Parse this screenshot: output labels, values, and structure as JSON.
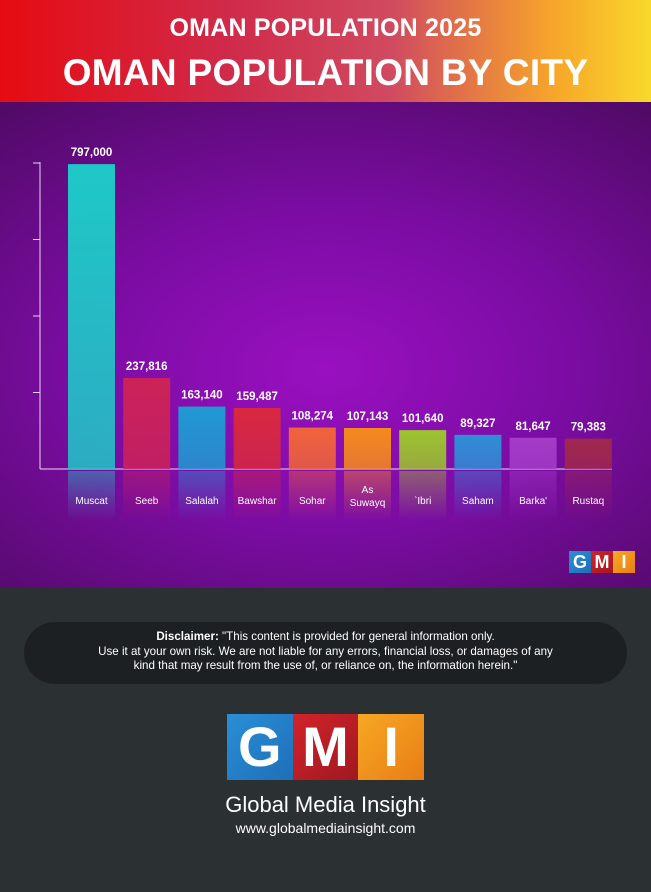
{
  "header": {
    "subtitle": "OMAN POPULATION 2025",
    "title": "OMAN POPULATION BY CITY"
  },
  "chart_data": {
    "type": "bar",
    "title": "OMAN POPULATION BY CITY",
    "categories": [
      "Muscat",
      "Seeb",
      "Salalah",
      "Bawshar",
      "Sohar",
      "As Suwayq",
      "`Ibri",
      "Saham",
      "Barka'",
      "Rustaq"
    ],
    "values": [
      797000,
      237816,
      163140,
      159487,
      108274,
      107143,
      101640,
      89327,
      81647,
      79383
    ],
    "value_labels": [
      "797,000",
      "237,816",
      "163,140",
      "159,487",
      "108,274",
      "107,143",
      "101,640",
      "89,327",
      "81,647",
      "79,383"
    ],
    "colors": [
      "#1fc8c8",
      "#cc2258",
      "#1f9ad2",
      "#d82840",
      "#f0643a",
      "#f58a1e",
      "#9cc42e",
      "#2f8ed6",
      "#a43cc8",
      "#a0284e"
    ],
    "ylim": [
      0,
      800000
    ],
    "xlabel": "",
    "ylabel": "",
    "grid": false
  },
  "watermark": {
    "letters": [
      "G",
      "M",
      "I"
    ]
  },
  "disclaimer": {
    "label": "Disclaimer:",
    "line1": " \"This content is provided for general information only.",
    "line2": "Use it at your own risk. We are not liable for any errors, financial loss, or damages of any",
    "line3": "kind that may result from the use of, or reliance on, the information herein.\""
  },
  "brand": {
    "logo_letters": [
      "G",
      "M",
      "I"
    ],
    "name": "Global Media Insight",
    "url": "www.globalmediainsight.com"
  }
}
